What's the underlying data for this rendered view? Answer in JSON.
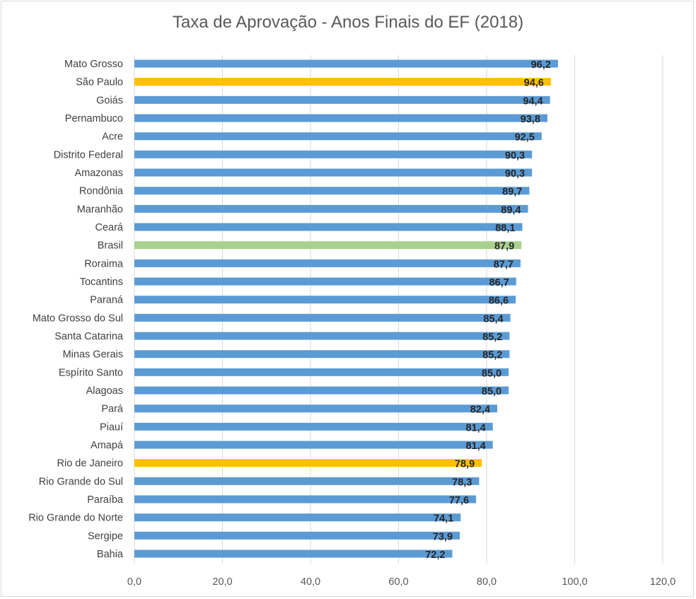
{
  "chart_data": {
    "type": "bar",
    "orientation": "horizontal",
    "title": "Taxa de Aprovação - Anos Finais do EF (2018)",
    "xlabel": "",
    "ylabel": "",
    "xlim": [
      0,
      120
    ],
    "xticks": [
      "0,0",
      "20,0",
      "40,0",
      "60,0",
      "80,0",
      "100,0",
      "120,0"
    ],
    "grid": "vertical",
    "legend": "none",
    "colors": {
      "default": "#5b9bd5",
      "highlight": "#ffc000",
      "national": "#a9d18e"
    },
    "categories": [
      "Mato Grosso",
      "São Paulo",
      "Goiás",
      "Pernambuco",
      "Acre",
      "Distrito Federal",
      "Amazonas",
      "Rondônia",
      "Maranhão",
      "Ceará",
      "Brasil",
      "Roraima",
      "Tocantins",
      "Paraná",
      "Mato Grosso do Sul",
      "Santa Catarina",
      "Minas Gerais",
      "Espírito Santo",
      "Alagoas",
      "Pará",
      "Piauí",
      "Amapá",
      "Rio de Janeiro",
      "Rio Grande do Sul",
      "Paraíba",
      "Rio Grande do Norte",
      "Sergipe",
      "Bahia"
    ],
    "values": [
      96.2,
      94.6,
      94.4,
      93.8,
      92.5,
      90.3,
      90.3,
      89.7,
      89.4,
      88.1,
      87.9,
      87.7,
      86.7,
      86.6,
      85.4,
      85.2,
      85.2,
      85.0,
      85.0,
      82.4,
      81.4,
      81.4,
      78.9,
      78.3,
      77.6,
      74.1,
      73.9,
      72.2
    ],
    "data_labels": [
      "96,2",
      "94,6",
      "94,4",
      "93,8",
      "92,5",
      "90,3",
      "90,3",
      "89,7",
      "89,4",
      "88,1",
      "87,9",
      "87,7",
      "86,7",
      "86,6",
      "85,4",
      "85,2",
      "85,2",
      "85,0",
      "85,0",
      "82,4",
      "81,4",
      "81,4",
      "78,9",
      "78,3",
      "77,6",
      "74,1",
      "73,9",
      "72,2"
    ],
    "bar_colors": [
      "default",
      "highlight",
      "default",
      "default",
      "default",
      "default",
      "default",
      "default",
      "default",
      "default",
      "national",
      "default",
      "default",
      "default",
      "default",
      "default",
      "default",
      "default",
      "default",
      "default",
      "default",
      "default",
      "highlight",
      "default",
      "default",
      "default",
      "default",
      "default"
    ]
  }
}
